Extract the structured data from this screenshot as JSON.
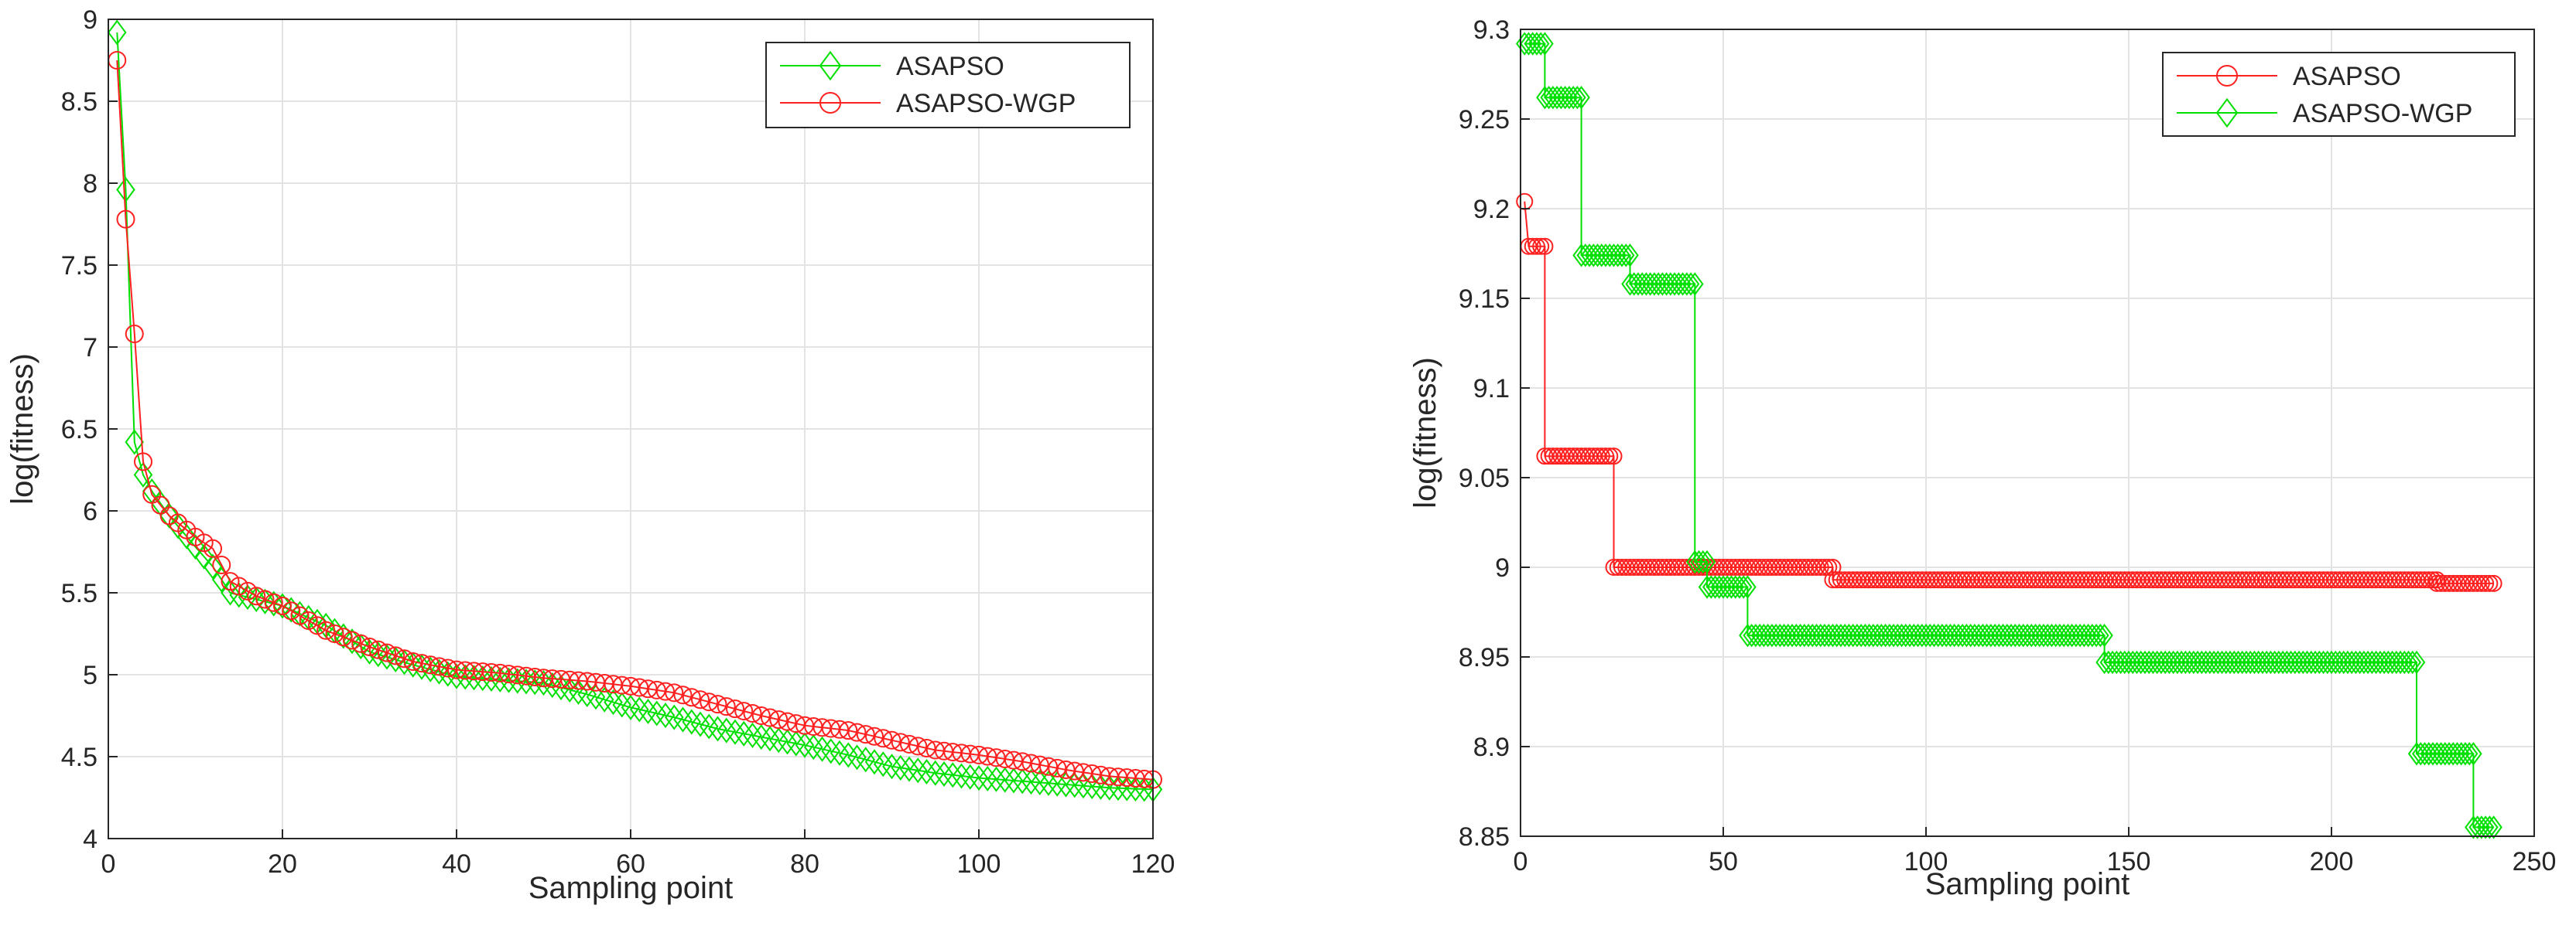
{
  "chart_data": [
    {
      "type": "line",
      "xlabel": "Sampling point",
      "ylabel": "log(fitness)",
      "xlim": [
        0,
        120
      ],
      "ylim": [
        4,
        9
      ],
      "xticks": [
        0,
        20,
        40,
        60,
        80,
        100,
        120
      ],
      "yticks": [
        4,
        4.5,
        5,
        5.5,
        6,
        6.5,
        7,
        7.5,
        8,
        8.5,
        9
      ],
      "yticklabels": [
        "4",
        "4.5",
        "5",
        "5.5",
        "6",
        "6.5",
        "7",
        "7.5",
        "8",
        "8.5",
        "9"
      ],
      "grid": true,
      "legend_position": "top-right",
      "series": [
        {
          "name": "ASAPSO",
          "color": "#00e000",
          "marker": "diamond",
          "points": [
            [
              1,
              8.92
            ],
            [
              2,
              7.96
            ],
            [
              3,
              6.42
            ],
            [
              4,
              6.22
            ],
            [
              5,
              6.12
            ],
            [
              7,
              5.97
            ],
            [
              10,
              5.78
            ],
            [
              12,
              5.66
            ],
            [
              14,
              5.5
            ],
            [
              17,
              5.46
            ],
            [
              20,
              5.42
            ],
            [
              25,
              5.3
            ],
            [
              30,
              5.14
            ],
            [
              35,
              5.06
            ],
            [
              40,
              4.99
            ],
            [
              45,
              4.97
            ],
            [
              50,
              4.95
            ],
            [
              55,
              4.88
            ],
            [
              60,
              4.8
            ],
            [
              65,
              4.74
            ],
            [
              70,
              4.67
            ],
            [
              75,
              4.62
            ],
            [
              80,
              4.57
            ],
            [
              85,
              4.51
            ],
            [
              90,
              4.44
            ],
            [
              95,
              4.4
            ],
            [
              100,
              4.37
            ],
            [
              105,
              4.35
            ],
            [
              110,
              4.33
            ],
            [
              115,
              4.31
            ],
            [
              120,
              4.3
            ]
          ]
        },
        {
          "name": "ASAPSO-WGP",
          "color": "#ff2020",
          "marker": "circle",
          "points": [
            [
              1,
              8.75
            ],
            [
              2,
              7.78
            ],
            [
              3,
              7.08
            ],
            [
              4,
              6.3
            ],
            [
              5,
              6.1
            ],
            [
              7,
              5.97
            ],
            [
              10,
              5.84
            ],
            [
              12,
              5.77
            ],
            [
              14,
              5.57
            ],
            [
              17,
              5.48
            ],
            [
              20,
              5.42
            ],
            [
              25,
              5.27
            ],
            [
              30,
              5.17
            ],
            [
              35,
              5.08
            ],
            [
              40,
              5.03
            ],
            [
              45,
              5.01
            ],
            [
              50,
              4.98
            ],
            [
              55,
              4.96
            ],
            [
              60,
              4.93
            ],
            [
              65,
              4.89
            ],
            [
              70,
              4.82
            ],
            [
              75,
              4.75
            ],
            [
              80,
              4.69
            ],
            [
              85,
              4.66
            ],
            [
              90,
              4.6
            ],
            [
              95,
              4.54
            ],
            [
              100,
              4.51
            ],
            [
              105,
              4.47
            ],
            [
              110,
              4.42
            ],
            [
              115,
              4.38
            ],
            [
              120,
              4.36
            ]
          ]
        }
      ]
    },
    {
      "type": "line",
      "xlabel": "Sampling point",
      "ylabel": "log(fitness)",
      "xlim": [
        0,
        250
      ],
      "ylim": [
        8.85,
        9.3
      ],
      "xticks": [
        0,
        50,
        100,
        150,
        200,
        250
      ],
      "yticks": [
        8.85,
        8.9,
        8.95,
        9,
        9.05,
        9.1,
        9.15,
        9.2,
        9.25,
        9.3
      ],
      "yticklabels": [
        "8.85",
        "8.9",
        "8.95",
        "9",
        "9.05",
        "9.1",
        "9.15",
        "9.2",
        "9.25",
        "9.3"
      ],
      "grid": true,
      "legend_position": "top-right",
      "series": [
        {
          "name": "ASAPSO",
          "color": "#ff2020",
          "marker": "circle",
          "steps": [
            [
              1,
              1,
              9.204
            ],
            [
              2,
              6,
              9.179
            ],
            [
              6,
              23,
              9.062
            ],
            [
              23,
              77,
              9.0
            ],
            [
              77,
              226,
              8.993
            ],
            [
              226,
              240,
              8.991
            ]
          ]
        },
        {
          "name": "ASAPSO-WGP",
          "color": "#00e000",
          "marker": "diamond",
          "steps": [
            [
              1,
              6,
              9.292
            ],
            [
              6,
              15,
              9.262
            ],
            [
              15,
              27,
              9.174
            ],
            [
              27,
              43,
              9.158
            ],
            [
              43,
              46,
              9.003
            ],
            [
              46,
              56,
              8.989
            ],
            [
              56,
              144,
              8.962
            ],
            [
              144,
              221,
              8.947
            ],
            [
              221,
              235,
              8.896
            ],
            [
              235,
              240,
              8.855
            ]
          ]
        }
      ]
    }
  ]
}
